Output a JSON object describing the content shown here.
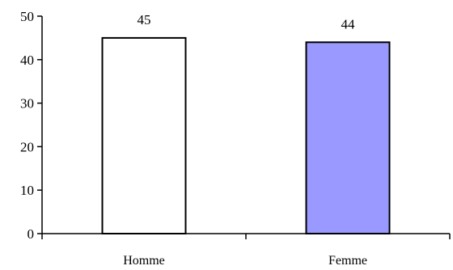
{
  "chart_data": {
    "type": "bar",
    "categories": [
      "Homme",
      "Femme"
    ],
    "values": [
      45,
      44
    ],
    "data_labels": [
      "45",
      "44"
    ],
    "bar_colors": [
      "#ffffff",
      "#9999ff"
    ],
    "bar_edge_color": "#000000",
    "ylim": [
      0,
      50
    ],
    "yticks": [
      0,
      10,
      20,
      30,
      40,
      50
    ],
    "grid": false,
    "legend": "none",
    "title": "",
    "xlabel": "",
    "ylabel": ""
  }
}
